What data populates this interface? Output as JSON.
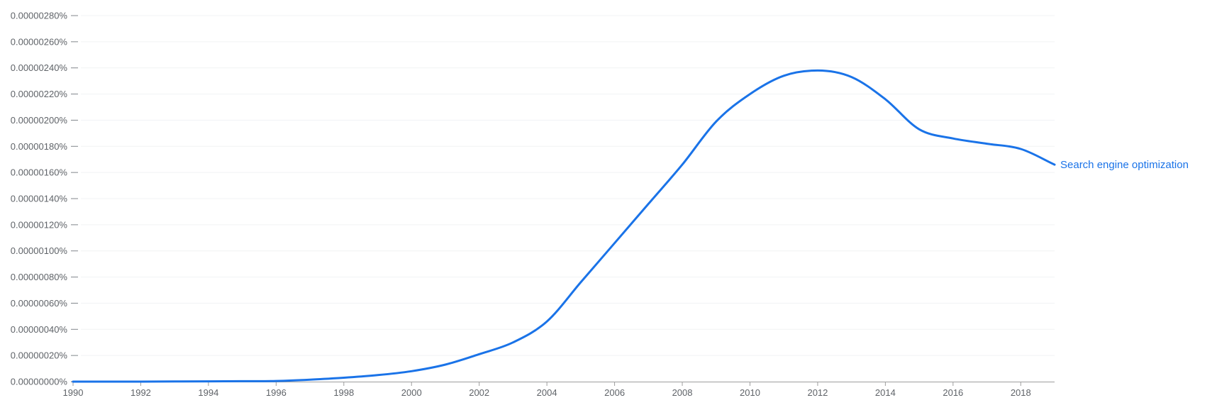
{
  "colors": {
    "line": "#1a73e8",
    "series_label": "#1a73e8",
    "grid": "#f1f3f4",
    "axis": "#9e9e9e",
    "tick_dash": "#80868b",
    "tick_text": "#5f6368",
    "background": "#ffffff"
  },
  "chart_data": {
    "type": "line",
    "title": "",
    "xlabel": "",
    "ylabel": "",
    "grid": true,
    "legend_position": "line-end",
    "x_axis": {
      "range": [
        1990,
        2019
      ],
      "ticks": [
        {
          "label": "1990",
          "value": 1990
        },
        {
          "label": "1992",
          "value": 1992
        },
        {
          "label": "1994",
          "value": 1994
        },
        {
          "label": "1996",
          "value": 1996
        },
        {
          "label": "1998",
          "value": 1998
        },
        {
          "label": "2000",
          "value": 2000
        },
        {
          "label": "2002",
          "value": 2002
        },
        {
          "label": "2004",
          "value": 2004
        },
        {
          "label": "2006",
          "value": 2006
        },
        {
          "label": "2008",
          "value": 2008
        },
        {
          "label": "2010",
          "value": 2010
        },
        {
          "label": "2012",
          "value": 2012
        },
        {
          "label": "2014",
          "value": 2014
        },
        {
          "label": "2016",
          "value": 2016
        },
        {
          "label": "2018",
          "value": 2018
        }
      ]
    },
    "y_axis": {
      "range": [
        0,
        2.8e-06
      ],
      "ticks": [
        {
          "label": "0.00000280%",
          "value": 2.8e-06
        },
        {
          "label": "0.00000260%",
          "value": 2.6e-06
        },
        {
          "label": "0.00000240%",
          "value": 2.4e-06
        },
        {
          "label": "0.00000220%",
          "value": 2.2e-06
        },
        {
          "label": "0.00000200%",
          "value": 2e-06
        },
        {
          "label": "0.00000180%",
          "value": 1.8e-06
        },
        {
          "label": "0.00000160%",
          "value": 1.6e-06
        },
        {
          "label": "0.00000140%",
          "value": 1.4e-06
        },
        {
          "label": "0.00000120%",
          "value": 1.2e-06
        },
        {
          "label": "0.00000100%",
          "value": 1e-06
        },
        {
          "label": "0.00000080%",
          "value": 8e-07
        },
        {
          "label": "0.00000060%",
          "value": 6e-07
        },
        {
          "label": "0.00000040%",
          "value": 4e-07
        },
        {
          "label": "0.00000020%",
          "value": 2e-07
        },
        {
          "label": "0.00000000%",
          "value": 0
        }
      ]
    },
    "series": [
      {
        "name": "Search engine optimization",
        "color": "#1a73e8",
        "x": [
          1990,
          1991,
          1992,
          1993,
          1994,
          1995,
          1996,
          1997,
          1998,
          1999,
          2000,
          2001,
          2002,
          2003,
          2004,
          2005,
          2006,
          2007,
          2008,
          2009,
          2010,
          2011,
          2012,
          2013,
          2014,
          2015,
          2016,
          2017,
          2018,
          2019
        ],
        "values": [
          0,
          0,
          0,
          1e-09,
          2e-09,
          3e-09,
          5e-09,
          1.5e-08,
          3e-08,
          5e-08,
          8e-08,
          1.3e-07,
          2.1e-07,
          3e-07,
          4.6e-07,
          7.6e-07,
          1.06e-06,
          1.36e-06,
          1.66e-06,
          1.99e-06,
          2.2e-06,
          2.34e-06,
          2.38e-06,
          2.33e-06,
          2.16e-06,
          1.93e-06,
          1.86e-06,
          1.82e-06,
          1.78e-06,
          1.66e-06
        ]
      }
    ]
  }
}
